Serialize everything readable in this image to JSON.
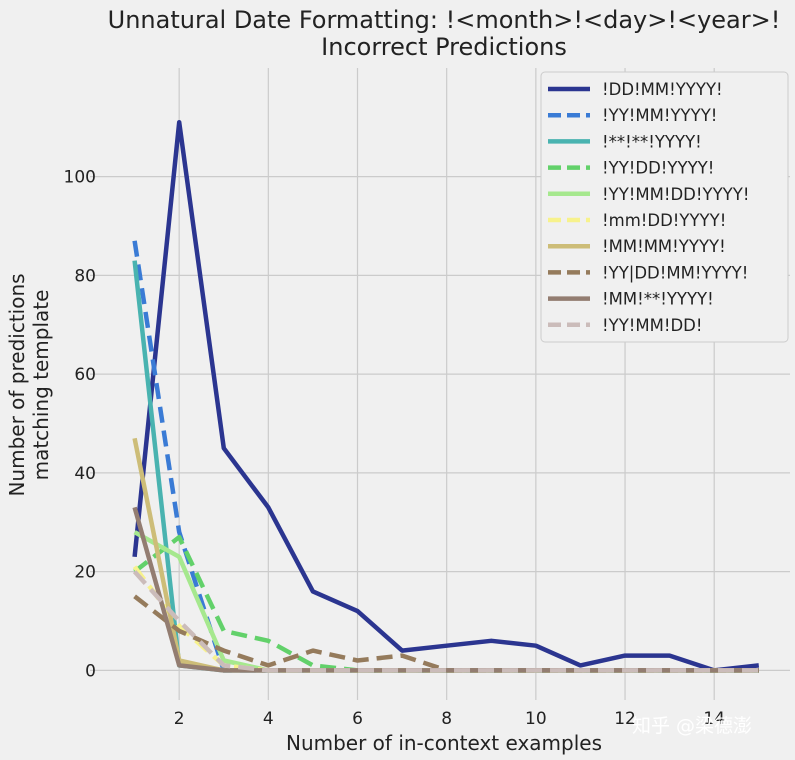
{
  "chart_data": {
    "type": "line",
    "title": [
      "Unnatural Date Formatting: !<month>!<day>!<year>!",
      "Incorrect Predictions"
    ],
    "xlabel": "Number of in-context examples",
    "ylabel": [
      "Number of predictions",
      "matching template"
    ],
    "xlim": [
      0.0,
      15.7
    ],
    "ylim": [
      -6,
      122
    ],
    "xticks": [
      2,
      4,
      6,
      8,
      10,
      12,
      14
    ],
    "yticks": [
      0,
      20,
      40,
      60,
      80,
      100
    ],
    "grid": true,
    "legend_position": "top-right",
    "x": [
      1,
      2,
      3,
      4,
      5,
      6,
      7,
      8,
      9,
      10,
      11,
      12,
      13,
      14,
      15
    ],
    "series": [
      {
        "name": "!DD!MM!YYYY!",
        "color": "#2b3590",
        "dash": "solid",
        "values": [
          23,
          111,
          45,
          33,
          16,
          12,
          4,
          5,
          6,
          5,
          1,
          3,
          3,
          0,
          1
        ]
      },
      {
        "name": "!YY!MM!YYYY!",
        "color": "#3a7bd5",
        "dash": "dashed",
        "values": [
          87,
          28,
          0,
          0,
          0,
          0,
          0,
          0,
          0,
          0,
          0,
          0,
          0,
          0,
          0
        ]
      },
      {
        "name": "!**!**!YYYY!",
        "color": "#49b3b0",
        "dash": "solid",
        "values": [
          83,
          1,
          0,
          0,
          0,
          0,
          0,
          0,
          0,
          0,
          0,
          0,
          0,
          0,
          0
        ]
      },
      {
        "name": "!YY!DD!YYYY!",
        "color": "#62d16a",
        "dash": "dashed",
        "values": [
          20,
          27,
          8,
          6,
          1,
          0,
          0,
          0,
          0,
          0,
          0,
          0,
          0,
          0,
          0
        ]
      },
      {
        "name": "!YY!MM!DD!YYYY!",
        "color": "#a6e88e",
        "dash": "solid",
        "values": [
          28,
          23,
          2,
          0,
          0,
          0,
          0,
          0,
          0,
          0,
          0,
          0,
          0,
          0,
          0
        ]
      },
      {
        "name": "!mm!DD!YYYY!",
        "color": "#f7f28c",
        "dash": "dashed",
        "values": [
          21,
          9,
          1,
          0,
          0,
          0,
          0,
          0,
          0,
          0,
          0,
          0,
          0,
          0,
          0
        ]
      },
      {
        "name": "!MM!MM!YYYY!",
        "color": "#cdbd78",
        "dash": "solid",
        "values": [
          47,
          2,
          0,
          0,
          0,
          0,
          0,
          0,
          0,
          0,
          0,
          0,
          0,
          0,
          0
        ]
      },
      {
        "name": "!YY|DD!MM!YYYY!",
        "color": "#957b5c",
        "dash": "dashed",
        "values": [
          15,
          8,
          4,
          1,
          4,
          2,
          3,
          0,
          0,
          0,
          0,
          0,
          0,
          0,
          0
        ]
      },
      {
        "name": "!MM!**!YYYY!",
        "color": "#937d71",
        "dash": "solid",
        "values": [
          33,
          1,
          0,
          0,
          0,
          0,
          0,
          0,
          0,
          0,
          0,
          0,
          0,
          0,
          0
        ]
      },
      {
        "name": "!YY!MM!DD!",
        "color": "#cbbcba",
        "dash": "dashed",
        "values": [
          20,
          10,
          1,
          0,
          0,
          0,
          0,
          0,
          0,
          0,
          0,
          0,
          0,
          0,
          0
        ]
      }
    ]
  },
  "watermark": "知乎 @梁德澎"
}
